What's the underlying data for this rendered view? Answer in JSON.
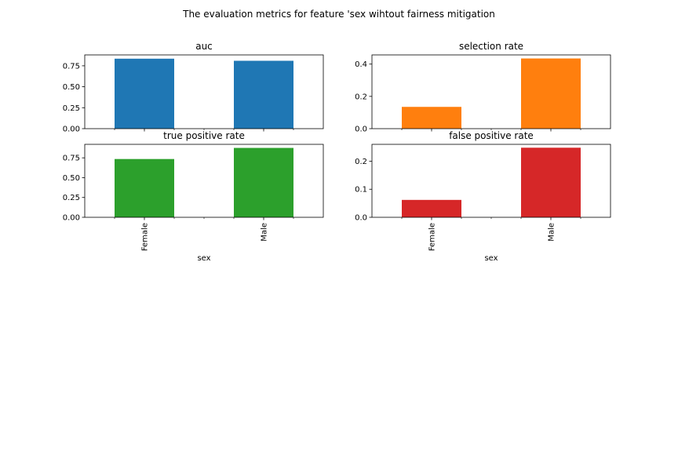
{
  "figure": {
    "suptitle": "The evaluation metrics for feature 'sex wihtout fairness mitigation"
  },
  "chart_data": [
    {
      "type": "bar",
      "title": "auc",
      "categories": [
        "Female",
        "Male"
      ],
      "values": [
        0.835,
        0.81
      ],
      "ylim": [
        0,
        0.88
      ],
      "yticks": [
        0.0,
        0.25,
        0.5,
        0.75
      ],
      "ytick_labels": [
        "0.00",
        "0.25",
        "0.50",
        "0.75"
      ],
      "color": "#1f77b4",
      "xlabel": "",
      "show_xticklabels": false,
      "grid": false
    },
    {
      "type": "bar",
      "title": "selection rate",
      "categories": [
        "Female",
        "Male"
      ],
      "values": [
        0.135,
        0.435
      ],
      "ylim": [
        0,
        0.457
      ],
      "yticks": [
        0.0,
        0.2,
        0.4
      ],
      "ytick_labels": [
        "0.0",
        "0.2",
        "0.4"
      ],
      "color": "#ff7f0e",
      "xlabel": "",
      "show_xticklabels": false,
      "grid": false
    },
    {
      "type": "bar",
      "title": "true positive rate",
      "categories": [
        "Female",
        "Male"
      ],
      "values": [
        0.735,
        0.875
      ],
      "ylim": [
        0,
        0.92
      ],
      "yticks": [
        0.0,
        0.25,
        0.5,
        0.75
      ],
      "ytick_labels": [
        "0.00",
        "0.25",
        "0.50",
        "0.75"
      ],
      "color": "#2ca02c",
      "xlabel": "sex",
      "show_xticklabels": true,
      "grid": false
    },
    {
      "type": "bar",
      "title": "false positive rate",
      "categories": [
        "Female",
        "Male"
      ],
      "values": [
        0.062,
        0.248
      ],
      "ylim": [
        0,
        0.26
      ],
      "yticks": [
        0.0,
        0.1,
        0.2
      ],
      "ytick_labels": [
        "0.0",
        "0.1",
        "0.2"
      ],
      "color": "#d62728",
      "xlabel": "sex",
      "show_xticklabels": true,
      "grid": false
    }
  ]
}
